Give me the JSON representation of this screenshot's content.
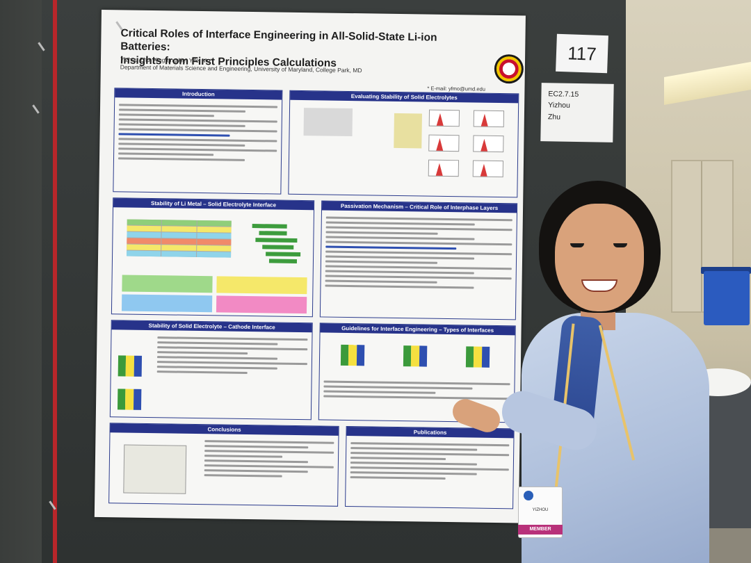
{
  "poster": {
    "number": "117",
    "name_card": [
      "EC2.7.15",
      "Yizhou",
      "Zhu"
    ],
    "title_line1": "Critical Roles of Interface Engineering in All-Solid-State Li-ion Batteries:",
    "title_line2": "Insights from First Principles Calculations",
    "authors": "Yizhou Zhu, Xingfeng He, Yifei Mo*",
    "affiliation": "Department of Materials Science and Engineering, University of Maryland, College Park, MD",
    "email": "* E-mail: yfmo@umd.edu",
    "sections": {
      "introduction": "Introduction",
      "evaluating": "Evaluating Stability of Solid Electrolytes",
      "stability_li": "Stability of Li Metal – Solid Electrolyte Interface",
      "passivation": "Passivation Mechanism – Critical Role of Interphase Layers",
      "cathode": "Stability of Solid Electrolyte – Cathode Interface",
      "guidelines": "Guidelines for Interface Engineering – Types of Interfaces",
      "conclusions": "Conclusions",
      "publications": "Publications"
    }
  },
  "badge": {
    "name": "YIZHOU",
    "role": "MEMBER"
  },
  "colors": {
    "poster_header_blue": "#27338a",
    "red_stripe": "#b8262a",
    "badge_strip": "#b8317a"
  }
}
